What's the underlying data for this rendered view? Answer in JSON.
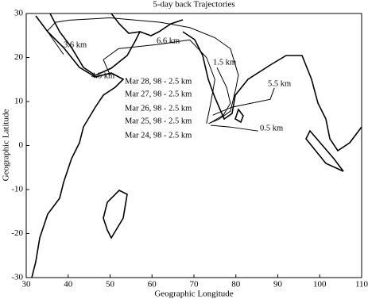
{
  "chart_data": {
    "type": "line",
    "title": "5-day back Trajectories",
    "x_label": "Geographic Longitude",
    "y_label": "Geographic Latitude",
    "xlim": [
      30,
      110
    ],
    "ylim": [
      -30,
      30
    ],
    "xticks": [
      30,
      40,
      50,
      60,
      70,
      80,
      90,
      100,
      110
    ],
    "yticks": [
      -30,
      -20,
      -10,
      0,
      10,
      20,
      30
    ],
    "color": "#000000",
    "annotations": [
      "3.6 km",
      "6.6 km",
      "4.5 km",
      "1.5 km",
      "5.5 km",
      "Mar 28, 98 - 2.5 km",
      "Mar 27, 98 - 2.5 km",
      "Mar 26, 98 - 2.5 km",
      "Mar 25, 98 - 2.5 km",
      "Mar 24, 98 - 2.5 km",
      "0.5 km"
    ],
    "series": [
      {
        "x": [
          38.9,
          35,
          37,
          40.3,
          50,
          62,
          69,
          75,
          78.7,
          80.6,
          80,
          78.7,
          76,
          73.5
        ],
        "y": [
          20.7,
          26,
          28,
          28.5,
          29,
          28,
          26.8,
          24.5,
          22,
          16,
          13,
          7.8,
          6,
          5
        ]
      },
      {
        "x": [
          50,
          48.4,
          52,
          61.7,
          69,
          73,
          75,
          74,
          73
        ],
        "y": [
          16,
          19.5,
          22,
          23,
          24,
          20,
          15,
          9.6,
          5
        ]
      },
      {
        "x": [
          75.5,
          77.8,
          78.7,
          77,
          74
        ],
        "y": [
          17.7,
          13.2,
          9.6,
          6.9,
          5.2
        ]
      },
      {
        "x": [
          89.2,
          88.2,
          79,
          74.5
        ],
        "y": [
          13.1,
          10.5,
          8.7,
          6.9
        ]
      },
      {
        "x": [
          85.3,
          78.7,
          74
        ],
        "y": [
          3.3,
          4.2,
          4.6
        ]
      }
    ]
  }
}
